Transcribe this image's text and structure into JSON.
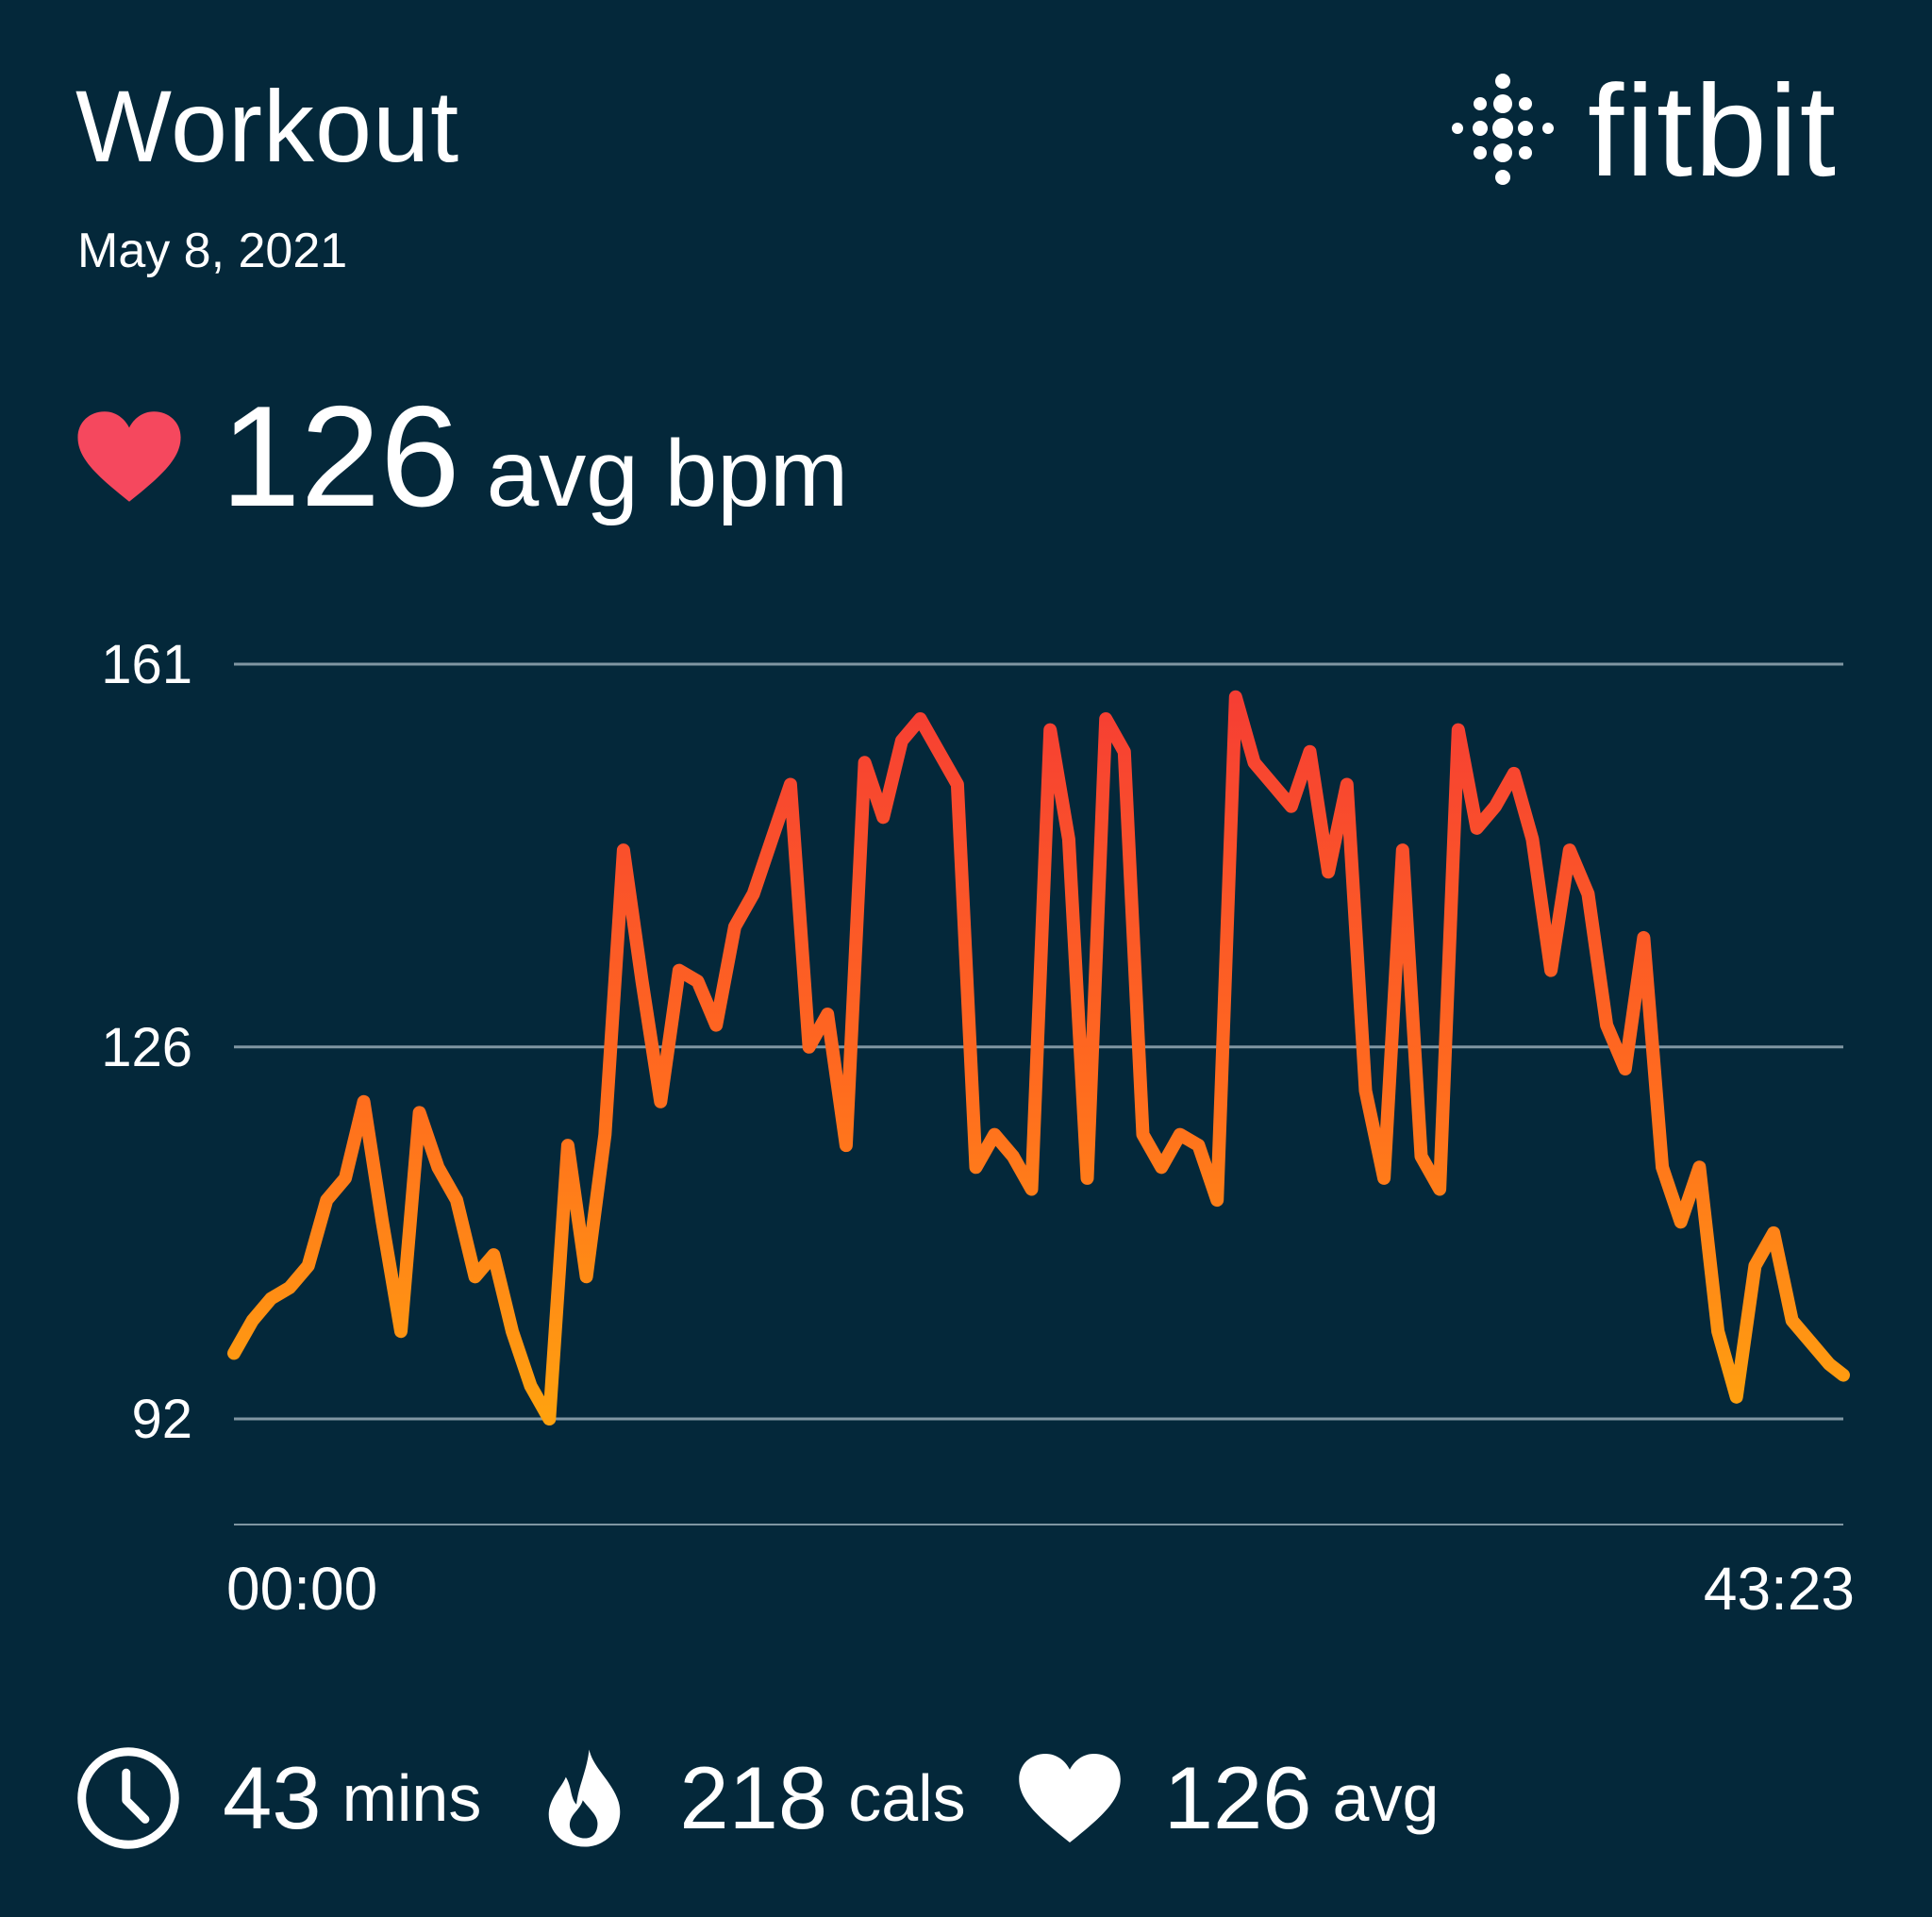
{
  "header": {
    "title": "Workout",
    "date": "May 8, 2021",
    "brand": "fitbit"
  },
  "summary": {
    "avg_value": "126",
    "avg_unit": "avg bpm"
  },
  "stats": [
    {
      "icon": "clock-icon",
      "value": "43",
      "unit": "mins"
    },
    {
      "icon": "flame-icon",
      "value": "218",
      "unit": "cals"
    },
    {
      "icon": "heart-icon",
      "value": "126",
      "unit": "avg"
    }
  ],
  "colors": {
    "background": "#04283a",
    "line_top": "#f53a35",
    "line_bottom": "#ffa10f",
    "heart_accent": "#f5485e",
    "gridline": "#8096a2"
  },
  "chart_data": {
    "type": "line",
    "title": "",
    "xlabel": "",
    "ylabel": "",
    "y_ticks": [
      161,
      126,
      92
    ],
    "x_tick_labels": [
      "00:00",
      "43:23"
    ],
    "ylim": [
      82,
      161
    ],
    "xlim": [
      0,
      43.38
    ],
    "x_unit": "minutes",
    "grid": true,
    "series": [
      {
        "values_x": [
          0,
          0.5,
          1,
          1.5,
          2,
          2.5,
          3,
          3.5,
          4,
          4.5,
          5,
          5.5,
          6,
          6.5,
          7,
          7.5,
          8,
          8.5,
          9,
          9.5,
          10,
          10.5,
          11,
          11.5,
          12,
          12.5,
          13,
          13.5,
          14,
          14.5,
          15,
          15.5,
          16,
          16.5,
          17,
          17.5,
          18,
          18.5,
          19,
          19.5,
          20,
          20.5,
          21,
          21.5,
          22,
          22.5,
          23,
          23.5,
          24,
          24.5,
          25,
          25.5,
          26,
          26.5,
          27,
          27.5,
          28,
          28.5,
          29,
          29.5,
          30,
          30.5,
          31,
          31.5,
          32,
          32.5,
          33,
          33.5,
          34,
          34.5,
          35,
          35.5,
          36,
          36.5,
          37,
          37.5,
          38,
          38.5,
          39,
          39.5,
          40,
          40.5,
          41,
          41.5,
          42,
          42.5,
          43,
          43.38
        ],
        "values_y": [
          98,
          101,
          103,
          104,
          106,
          112,
          114,
          121,
          110,
          100,
          120,
          115,
          112,
          105,
          107,
          100,
          95,
          92,
          117,
          105,
          118,
          144,
          132,
          121,
          133,
          132,
          128,
          137,
          140,
          145,
          150,
          126,
          129,
          117,
          152,
          147,
          154,
          156,
          153,
          150,
          115,
          118,
          116,
          113,
          155,
          145,
          114,
          156,
          153,
          118,
          115,
          118,
          117,
          112,
          158,
          152,
          150,
          148,
          153,
          142,
          150,
          122,
          114,
          144,
          116,
          113,
          155,
          146,
          148,
          151,
          145,
          133,
          144,
          140,
          128,
          124,
          136,
          115,
          110,
          115,
          100,
          94,
          106,
          109,
          101,
          99,
          97,
          96
        ]
      }
    ]
  }
}
